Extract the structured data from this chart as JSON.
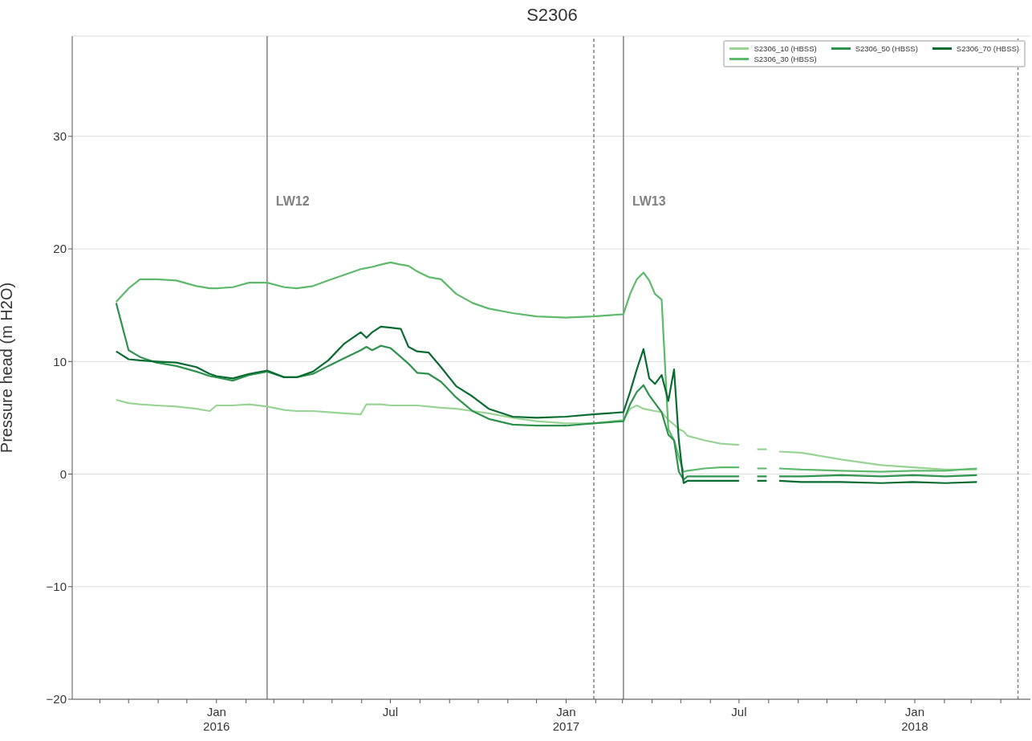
{
  "chart_data": {
    "type": "line",
    "title": "S2306",
    "ylabel": "Pressure head (m H2O)",
    "grid": "y",
    "legend": "top right",
    "x": [
      "2015-09-18",
      "2015-10-01",
      "2015-10-13",
      "2015-10-30",
      "2015-11-20",
      "2015-12-11",
      "2015-12-25",
      "2016-01-01",
      "2016-01-18",
      "2016-02-04",
      "2016-02-23",
      "2016-03-12",
      "2016-03-25",
      "2016-04-11",
      "2016-04-27",
      "2016-05-14",
      "2016-05-31",
      "2016-06-06",
      "2016-06-12",
      "2016-06-21",
      "2016-07-01",
      "2016-07-12",
      "2016-07-20",
      "2016-07-29",
      "2016-08-10",
      "2016-08-23",
      "2016-09-08",
      "2016-09-25",
      "2016-10-12",
      "2016-11-06",
      "2016-12-01",
      "2017-01-01",
      "2017-01-29",
      "2017-03-02",
      "2017-03-09",
      "2017-03-16",
      "2017-03-23",
      "2017-03-29",
      "2017-04-04",
      "2017-04-11",
      "2017-04-18",
      "2017-04-24",
      "2017-04-29",
      "2017-05-04",
      "2017-05-08",
      "2017-05-26",
      "2017-06-12",
      "2017-07-01",
      "2017-07-11",
      "2017-07-20",
      "2017-07-30",
      "2017-08-05",
      "2017-08-12",
      "2017-09-04",
      "2017-10-16",
      "2017-11-27",
      "2017-12-30",
      "2018-02-02",
      "2018-03-07"
    ],
    "series": [
      {
        "name": "S2306_10 (HBSS)",
        "color": "#98d594",
        "values": [
          6.6,
          6.3,
          6.2,
          6.1,
          6.0,
          5.8,
          5.6,
          6.1,
          6.1,
          6.2,
          6.0,
          5.7,
          5.6,
          5.6,
          5.5,
          5.4,
          5.3,
          6.2,
          6.2,
          6.2,
          6.1,
          6.1,
          6.1,
          6.1,
          6.0,
          5.9,
          5.8,
          5.6,
          5.4,
          5.0,
          4.7,
          4.5,
          4.5,
          4.8,
          5.8,
          6.1,
          5.8,
          5.7,
          5.6,
          5.5,
          4.8,
          4.4,
          4.0,
          3.8,
          3.4,
          3.0,
          2.7,
          2.6,
          null,
          2.2,
          2.2,
          null,
          2.0,
          1.9,
          1.3,
          0.8,
          0.6,
          0.4,
          0.4
        ]
      },
      {
        "name": "S2306_30 (HBSS)",
        "color": "#5db96b",
        "values": [
          15.3,
          16.5,
          17.3,
          17.3,
          17.2,
          16.7,
          16.5,
          16.5,
          16.6,
          17.0,
          17.0,
          16.6,
          16.5,
          16.7,
          17.2,
          17.7,
          18.2,
          18.3,
          18.4,
          18.6,
          18.8,
          18.6,
          18.5,
          18.0,
          17.5,
          17.3,
          16.0,
          15.2,
          14.7,
          14.3,
          14.0,
          13.9,
          14.0,
          14.2,
          16.0,
          17.3,
          17.9,
          17.2,
          16.0,
          15.5,
          4.0,
          3.0,
          1.5,
          0.2,
          0.3,
          0.5,
          0.6,
          0.6,
          null,
          0.5,
          0.5,
          null,
          0.5,
          0.4,
          0.3,
          0.2,
          0.3,
          0.3,
          0.5
        ]
      },
      {
        "name": "S2306_50 (HBSS)",
        "color": "#2e924d",
        "values": [
          15.2,
          11.0,
          10.4,
          9.9,
          9.6,
          9.1,
          8.7,
          8.6,
          8.3,
          8.8,
          9.1,
          8.6,
          8.6,
          8.9,
          9.6,
          10.3,
          11.0,
          11.3,
          11.0,
          11.4,
          11.2,
          10.4,
          9.8,
          9.0,
          8.9,
          8.2,
          6.8,
          5.6,
          4.9,
          4.4,
          4.3,
          4.3,
          4.5,
          4.7,
          6.2,
          7.3,
          7.9,
          7.0,
          6.3,
          5.5,
          3.5,
          3.0,
          0.2,
          -0.5,
          -0.2,
          -0.2,
          -0.2,
          -0.2,
          null,
          -0.2,
          -0.2,
          null,
          -0.2,
          -0.2,
          -0.1,
          -0.2,
          -0.1,
          -0.2,
          -0.1
        ]
      },
      {
        "name": "S2306_70 (HBSS)",
        "color": "#0a6b31",
        "values": [
          10.9,
          10.2,
          10.1,
          10.0,
          9.9,
          9.5,
          8.9,
          8.7,
          8.5,
          8.9,
          9.2,
          8.6,
          8.6,
          9.1,
          10.1,
          11.6,
          12.6,
          12.1,
          12.6,
          13.1,
          13.0,
          12.9,
          11.3,
          10.9,
          10.8,
          9.5,
          7.8,
          6.9,
          5.8,
          5.1,
          5.0,
          5.1,
          5.3,
          5.5,
          7.3,
          9.3,
          11.1,
          8.5,
          8.0,
          8.8,
          6.5,
          9.3,
          3.0,
          -0.8,
          -0.6,
          -0.6,
          -0.6,
          -0.6,
          null,
          -0.6,
          -0.6,
          null,
          -0.6,
          -0.7,
          -0.7,
          -0.8,
          -0.7,
          -0.8,
          -0.7
        ]
      }
    ],
    "xlim": [
      "2015-08-03",
      "2018-05-02"
    ],
    "xticks": [
      {
        "value": "2015-09-01",
        "label": null
      },
      {
        "value": "2015-10-01",
        "label": null
      },
      {
        "value": "2015-11-01",
        "label": null
      },
      {
        "value": "2015-12-01",
        "label": null
      },
      {
        "value": "2016-01-01",
        "label": "Jan\n2016"
      },
      {
        "value": "2016-02-01",
        "label": null
      },
      {
        "value": "2016-03-01",
        "label": null
      },
      {
        "value": "2016-04-01",
        "label": null
      },
      {
        "value": "2016-05-01",
        "label": null
      },
      {
        "value": "2016-06-01",
        "label": null
      },
      {
        "value": "2016-07-01",
        "label": "Jul"
      },
      {
        "value": "2016-08-01",
        "label": null
      },
      {
        "value": "2016-09-01",
        "label": null
      },
      {
        "value": "2016-10-01",
        "label": null
      },
      {
        "value": "2016-11-01",
        "label": null
      },
      {
        "value": "2016-12-01",
        "label": null
      },
      {
        "value": "2017-01-01",
        "label": "Jan\n2017"
      },
      {
        "value": "2017-02-01",
        "label": null
      },
      {
        "value": "2017-03-01",
        "label": null
      },
      {
        "value": "2017-04-01",
        "label": null
      },
      {
        "value": "2017-05-01",
        "label": null
      },
      {
        "value": "2017-06-01",
        "label": null
      },
      {
        "value": "2017-07-01",
        "label": "Jul"
      },
      {
        "value": "2017-08-01",
        "label": null
      },
      {
        "value": "2017-09-01",
        "label": null
      },
      {
        "value": "2017-10-01",
        "label": null
      },
      {
        "value": "2017-11-01",
        "label": null
      },
      {
        "value": "2017-12-01",
        "label": null
      },
      {
        "value": "2018-01-01",
        "label": "Jan\n2018"
      },
      {
        "value": "2018-02-01",
        "label": null
      },
      {
        "value": "2018-03-01",
        "label": null
      },
      {
        "value": "2018-04-01",
        "label": null
      }
    ],
    "ylim": [
      -20,
      38.9
    ],
    "yticks": [
      {
        "value": -20,
        "label": "−20"
      },
      {
        "value": -10,
        "label": "−10"
      },
      0,
      10,
      20,
      30
    ],
    "ref_lines": [
      {
        "axis": "x",
        "value": "2016-02-23",
        "label": "LW12",
        "color": "#808080",
        "line_style": "solid"
      },
      {
        "axis": "x",
        "value": "2017-01-30",
        "color": "#808080",
        "line_style": "dashed"
      },
      {
        "axis": "x",
        "value": "2017-03-02",
        "label": "LW13",
        "color": "#808080",
        "line_style": "solid"
      },
      {
        "axis": "x",
        "value": "2018-04-19",
        "color": "#808080",
        "line_style": "dashed"
      }
    ]
  }
}
